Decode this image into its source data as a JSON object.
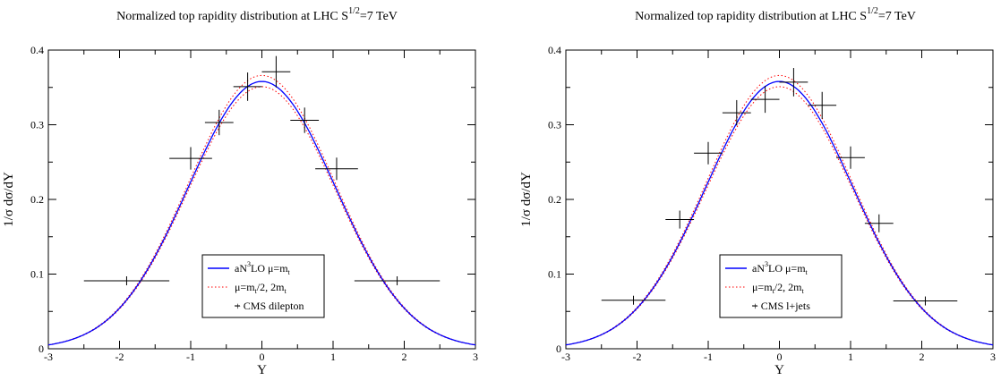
{
  "chart_data": [
    {
      "type": "line",
      "title": "Normalized top rapidity distribution at LHC",
      "title_energy": {
        "base": "S",
        "superscript": "1/2",
        "rest": "=7 TeV"
      },
      "xlabel": "Y",
      "ylabel": "1/σ  dσ/dY",
      "xlim": [
        -3,
        3
      ],
      "ylim": [
        0,
        0.4
      ],
      "xticks": [
        "-3",
        "-2",
        "-1",
        "0",
        "1",
        "2",
        "3"
      ],
      "yticks": [
        "0",
        "0.1",
        "0.2",
        "0.3",
        "0.4"
      ],
      "grid": false,
      "legend_position": "lower-center",
      "curve_peak": 0.358,
      "curve_width": 1.03,
      "band_low_peak": 0.351,
      "band_high_peak": 0.366,
      "series": [
        {
          "name": "aN³LO  μ=m_t",
          "legend": {
            "main": "aN",
            "sup": "3",
            "after": "LO  μ=m",
            "sub": "t"
          },
          "style": "solid",
          "color": "#0000ff"
        },
        {
          "name": "μ=m_t/2, 2m_t",
          "legend": {
            "a": "μ=m",
            "asub": "t",
            "b": "/2, 2m",
            "bsub": "t"
          },
          "style": "dotted",
          "color": "#ff0000"
        },
        {
          "name": "+ CMS dilepton",
          "legend_text": "+ CMS dilepton",
          "style": "crosses",
          "color": "#000000",
          "points": [
            {
              "x": -1.9,
              "y": 0.091,
              "xerr": 0.6,
              "yerr": 0.006
            },
            {
              "x": -1.0,
              "y": 0.255,
              "xerr": 0.3,
              "yerr": 0.015
            },
            {
              "x": -0.6,
              "y": 0.303,
              "xerr": 0.2,
              "yerr": 0.017
            },
            {
              "x": -0.2,
              "y": 0.351,
              "xerr": 0.2,
              "yerr": 0.019
            },
            {
              "x": 0.2,
              "y": 0.371,
              "xerr": 0.2,
              "yerr": 0.021
            },
            {
              "x": 0.6,
              "y": 0.306,
              "xerr": 0.2,
              "yerr": 0.017
            },
            {
              "x": 1.05,
              "y": 0.241,
              "xerr": 0.3,
              "yerr": 0.015
            },
            {
              "x": 1.9,
              "y": 0.091,
              "xerr": 0.6,
              "yerr": 0.006
            }
          ]
        }
      ]
    },
    {
      "type": "line",
      "title": "Normalized top rapidity distribution at LHC",
      "title_energy": {
        "base": "S",
        "superscript": "1/2",
        "rest": "=7 TeV"
      },
      "xlabel": "Y",
      "ylabel": "1/σ  dσ/dY",
      "xlim": [
        -3,
        3
      ],
      "ylim": [
        0,
        0.4
      ],
      "xticks": [
        "-3",
        "-2",
        "-1",
        "0",
        "1",
        "2",
        "3"
      ],
      "yticks": [
        "0",
        "0.1",
        "0.2",
        "0.3",
        "0.4"
      ],
      "grid": false,
      "legend_position": "lower-center",
      "curve_peak": 0.358,
      "curve_width": 1.03,
      "band_low_peak": 0.351,
      "band_high_peak": 0.366,
      "series": [
        {
          "name": "aN³LO  μ=m_t",
          "legend": {
            "main": "aN",
            "sup": "3",
            "after": "LO  μ=m",
            "sub": "t"
          },
          "style": "solid",
          "color": "#0000ff"
        },
        {
          "name": "μ=m_t/2, 2m_t",
          "legend": {
            "a": "μ=m",
            "asub": "t",
            "b": "/2, 2m",
            "bsub": "t"
          },
          "style": "dotted",
          "color": "#ff0000"
        },
        {
          "name": "+ CMS l+jets",
          "legend_text": "+ CMS l+jets",
          "style": "crosses",
          "color": "#000000",
          "points": [
            {
              "x": -2.05,
              "y": 0.065,
              "xerr": 0.45,
              "yerr": 0.006
            },
            {
              "x": -1.4,
              "y": 0.173,
              "xerr": 0.2,
              "yerr": 0.012
            },
            {
              "x": -1.0,
              "y": 0.262,
              "xerr": 0.2,
              "yerr": 0.015
            },
            {
              "x": -0.6,
              "y": 0.316,
              "xerr": 0.2,
              "yerr": 0.017
            },
            {
              "x": -0.2,
              "y": 0.334,
              "xerr": 0.2,
              "yerr": 0.018
            },
            {
              "x": 0.2,
              "y": 0.357,
              "xerr": 0.2,
              "yerr": 0.019
            },
            {
              "x": 0.6,
              "y": 0.326,
              "xerr": 0.2,
              "yerr": 0.018
            },
            {
              "x": 1.0,
              "y": 0.256,
              "xerr": 0.2,
              "yerr": 0.015
            },
            {
              "x": 1.4,
              "y": 0.168,
              "xerr": 0.2,
              "yerr": 0.012
            },
            {
              "x": 2.05,
              "y": 0.064,
              "xerr": 0.45,
              "yerr": 0.006
            }
          ]
        }
      ]
    }
  ]
}
